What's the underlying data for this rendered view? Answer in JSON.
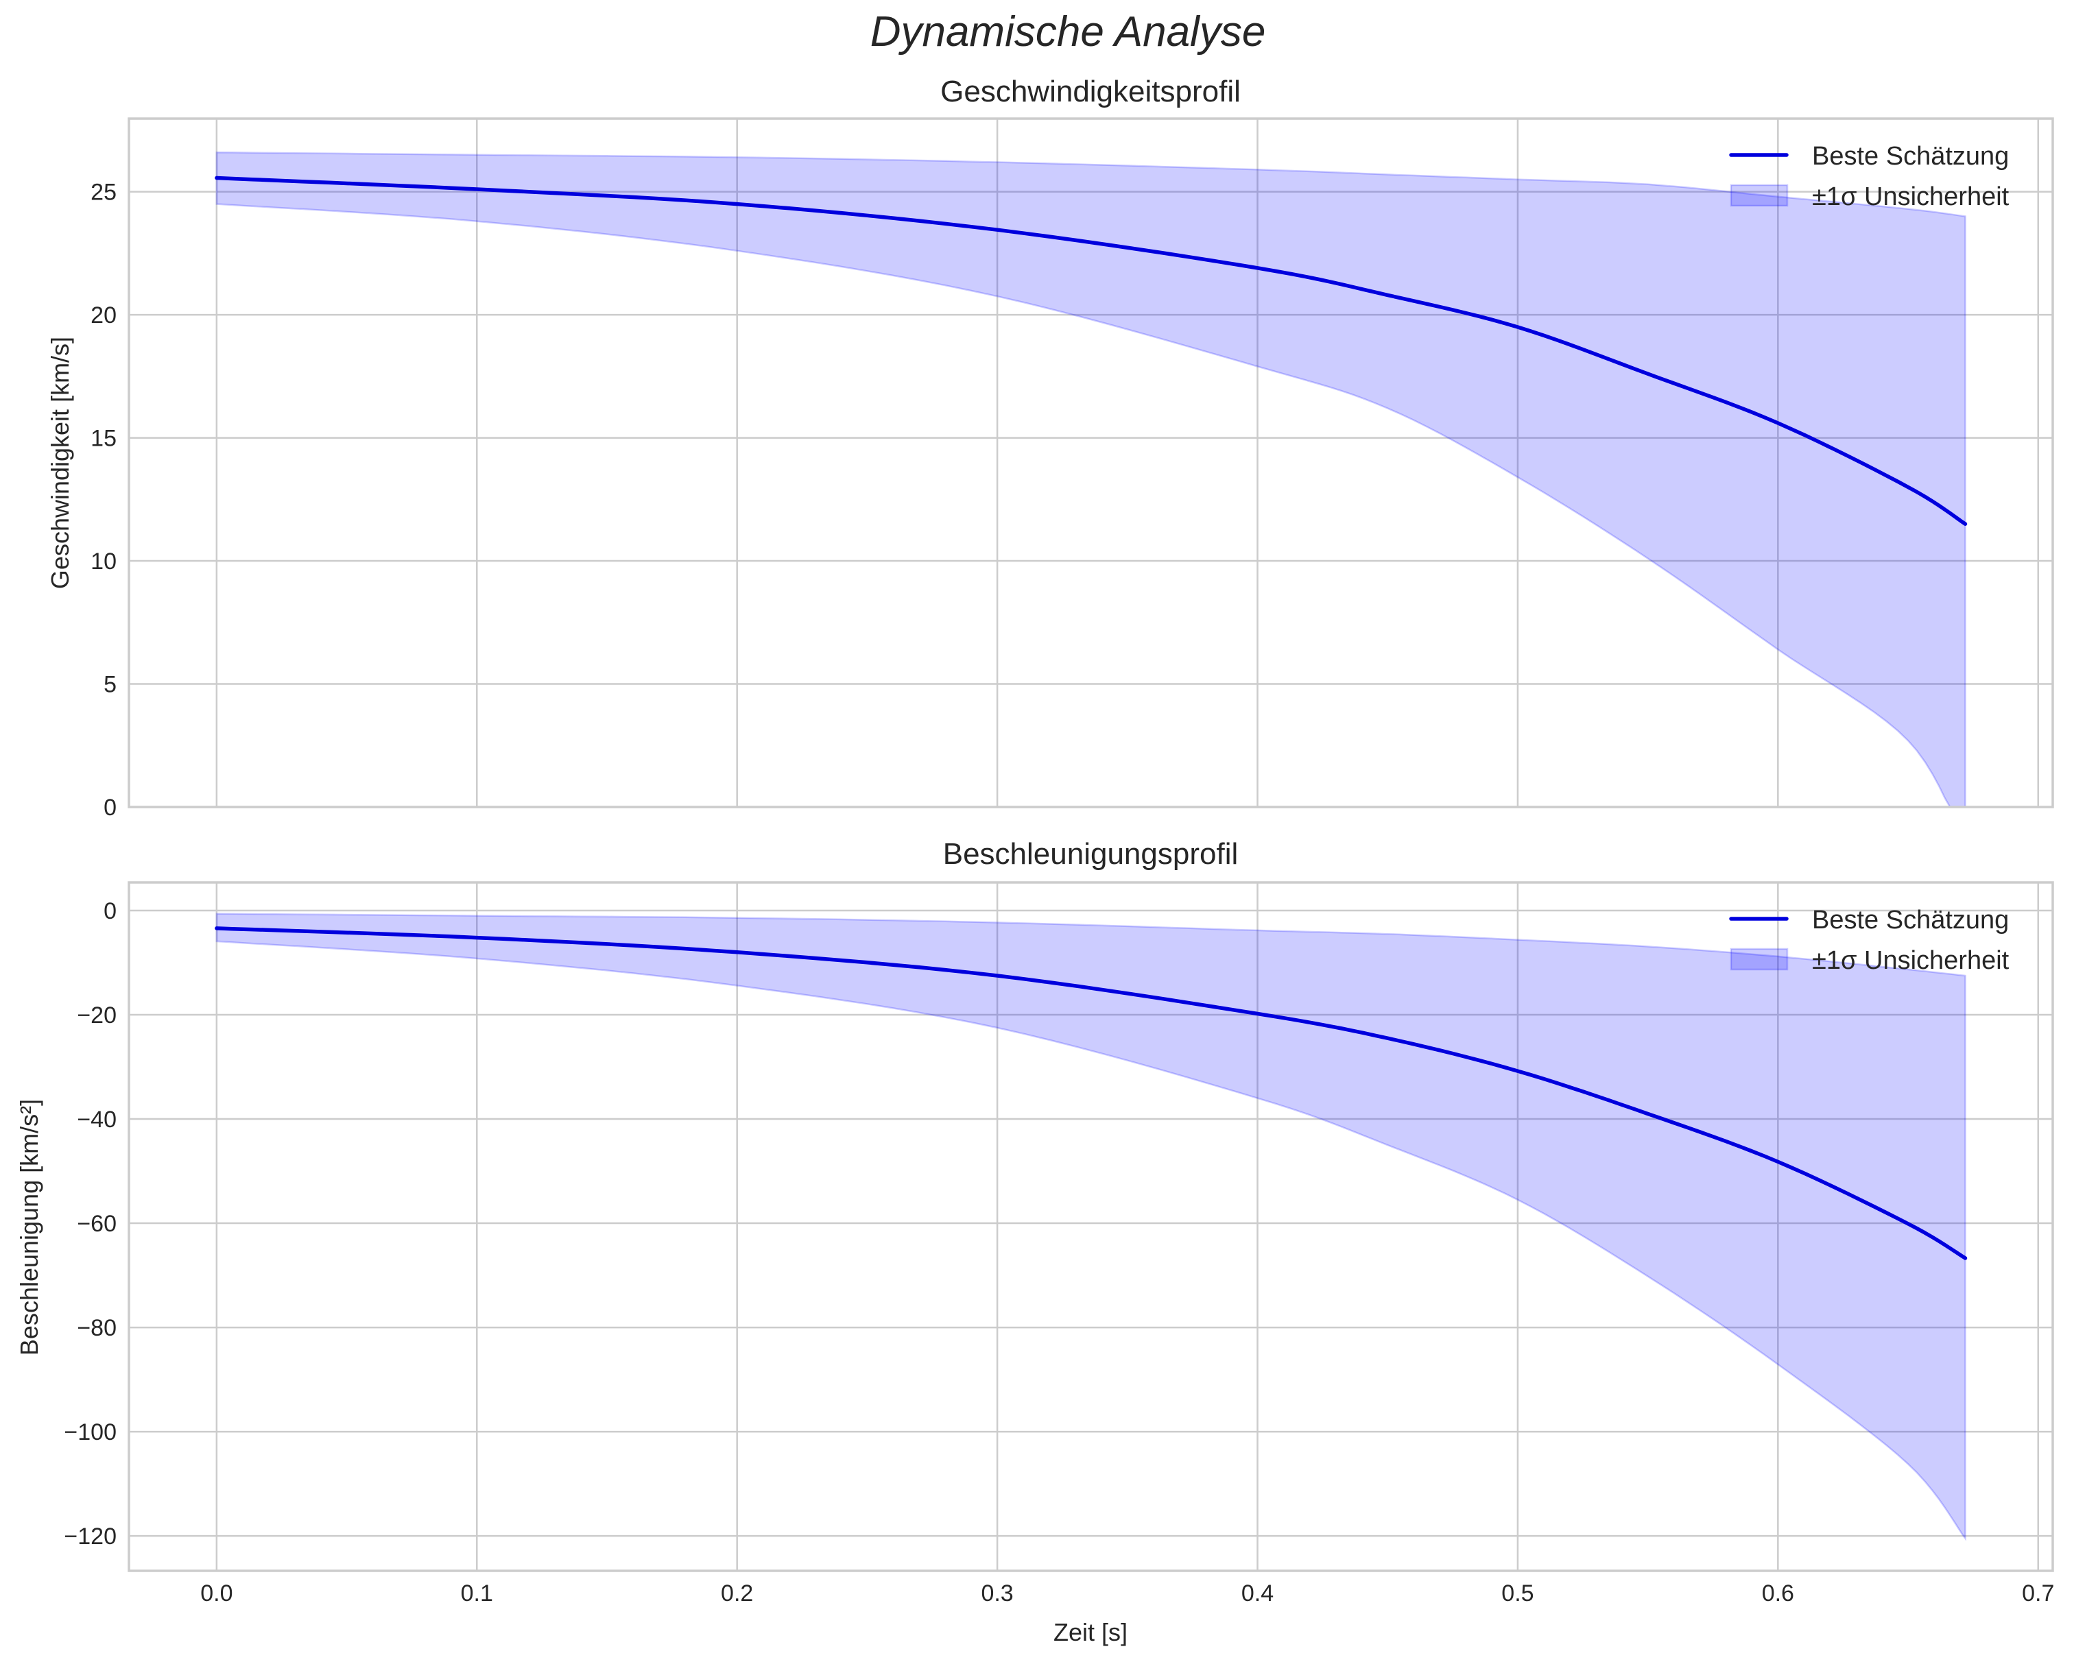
{
  "figure": {
    "title": "Dynamische Analyse"
  },
  "chart_data": [
    {
      "type": "line",
      "title": "Geschwindigkeitsprofil",
      "xlabel": "",
      "ylabel": "Geschwindigkeit [km/s]",
      "xlim": [
        -0.0337,
        0.7056
      ],
      "ylim": [
        0,
        27.97
      ],
      "grid": true,
      "legend_position": "upper right",
      "legend": [
        "Beste Schätzung",
        "±1σ Unsicherheit"
      ],
      "x_ticks": [
        "0.0",
        "0.1",
        "0.2",
        "0.3",
        "0.4",
        "0.5",
        "0.6",
        "0.7"
      ],
      "y_ticks": [
        0,
        5,
        10,
        15,
        20,
        25
      ],
      "x": [
        0.0,
        0.1,
        0.2,
        0.3,
        0.4,
        0.45,
        0.5,
        0.55,
        0.6,
        0.65,
        0.672
      ],
      "series": [
        {
          "name": "Beste Schätzung",
          "kind": "line",
          "color": "#0000dd",
          "values": [
            25.56,
            25.1,
            24.5,
            23.45,
            21.9,
            20.8,
            19.5,
            17.6,
            15.6,
            13.0,
            11.5
          ]
        },
        {
          "name": "±1σ Unsicherheit (obere Grenze)",
          "kind": "band_upper",
          "color": "#0000ff",
          "values": [
            26.6,
            26.5,
            26.4,
            26.2,
            25.9,
            25.7,
            25.5,
            25.3,
            24.8,
            24.3,
            24.0
          ]
        },
        {
          "name": "±1σ Unsicherheit (untere Grenze)",
          "kind": "band_lower",
          "color": "#0000ff",
          "values": [
            24.5,
            23.8,
            22.6,
            20.75,
            17.9,
            16.2,
            13.4,
            10.1,
            6.4,
            2.7,
            -1.5
          ]
        }
      ]
    },
    {
      "type": "line",
      "title": "Beschleunigungsprofil",
      "xlabel": "Zeit [s]",
      "ylabel": "Beschleunigung [km/s²]",
      "xlim": [
        -0.0337,
        0.7056
      ],
      "ylim": [
        -126.7,
        5.4
      ],
      "grid": true,
      "legend_position": "upper right",
      "legend": [
        "Beste Schätzung",
        "±1σ Unsicherheit"
      ],
      "x_ticks": [
        "0.0",
        "0.1",
        "0.2",
        "0.3",
        "0.4",
        "0.5",
        "0.6",
        "0.7"
      ],
      "y_ticks": [
        0,
        -20,
        -40,
        -60,
        -80,
        -100,
        -120
      ],
      "y_tick_labels": [
        "0",
        "−20",
        "−40",
        "−60",
        "−80",
        "−100",
        "−120"
      ],
      "x": [
        0.0,
        0.1,
        0.2,
        0.3,
        0.4,
        0.45,
        0.5,
        0.55,
        0.6,
        0.65,
        0.672
      ],
      "series": [
        {
          "name": "Beste Schätzung",
          "kind": "line",
          "color": "#0000dd",
          "values": [
            -3.4,
            -5.2,
            -8.0,
            -12.5,
            -19.8,
            -24.5,
            -30.8,
            -39.0,
            -48.2,
            -60.1,
            -66.7
          ]
        },
        {
          "name": "±1σ Unsicherheit (obere Grenze)",
          "kind": "band_upper",
          "color": "#0000ff",
          "values": [
            -0.6,
            -1.0,
            -1.4,
            -2.3,
            -3.8,
            -4.5,
            -5.6,
            -6.9,
            -8.8,
            -11.3,
            -12.5
          ]
        },
        {
          "name": "±1σ Unsicherheit (untere Grenze)",
          "kind": "band_lower",
          "color": "#0000ff",
          "values": [
            -5.9,
            -9.2,
            -14.4,
            -22.5,
            -36.0,
            -45.0,
            -55.5,
            -70.2,
            -87.1,
            -106.2,
            -120.5
          ]
        }
      ]
    }
  ],
  "plots": {
    "top": {
      "title": "Geschwindigkeitsprofil",
      "ylabel": "Geschwindigkeit [km/s]",
      "legend_line": "Beste Schätzung",
      "legend_band": "±1σ Unsicherheit",
      "ytick_labels": [
        "0",
        "5",
        "10",
        "15",
        "20",
        "25"
      ]
    },
    "bottom": {
      "title": "Beschleunigungsprofil",
      "ylabel": "Beschleunigung [km/s²]",
      "xlabel": "Zeit [s]",
      "legend_line": "Beste Schätzung",
      "legend_band": "±1σ Unsicherheit",
      "ytick_labels": [
        "0",
        "−20",
        "−40",
        "−60",
        "−80",
        "−100",
        "−120"
      ],
      "xtick_labels": [
        "0.0",
        "0.1",
        "0.2",
        "0.3",
        "0.4",
        "0.5",
        "0.6",
        "0.7"
      ]
    }
  },
  "colors": {
    "line": "#0000dd",
    "band": "#0000ff",
    "grid": "#cccccc",
    "text": "#262626"
  }
}
